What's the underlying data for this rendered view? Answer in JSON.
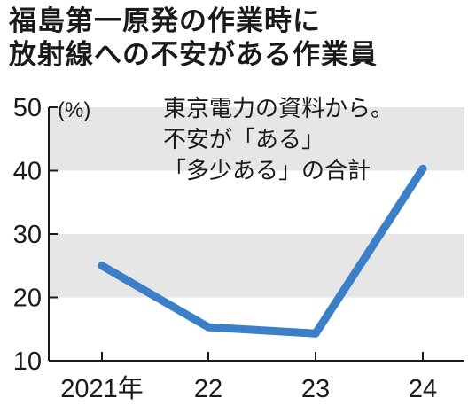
{
  "title": {
    "line1": "福島第一原発の作業時に",
    "line2": "放射線への不安がある作業員"
  },
  "chart_data": {
    "type": "line",
    "categories": [
      "2021年",
      "22",
      "23",
      "24"
    ],
    "series": [
      {
        "values": [
          25,
          15.3,
          14.3,
          40.3
        ]
      }
    ],
    "ylim": [
      10,
      50
    ],
    "yticks": [
      10,
      20,
      30,
      40,
      50
    ],
    "ylabel": "(%)",
    "note": [
      "東京電力の資料から。",
      "不安が「ある」",
      "「多少ある」の合計"
    ],
    "line_color": "#3a7fc7",
    "band_color": "#e6e6e6",
    "grid": false
  }
}
